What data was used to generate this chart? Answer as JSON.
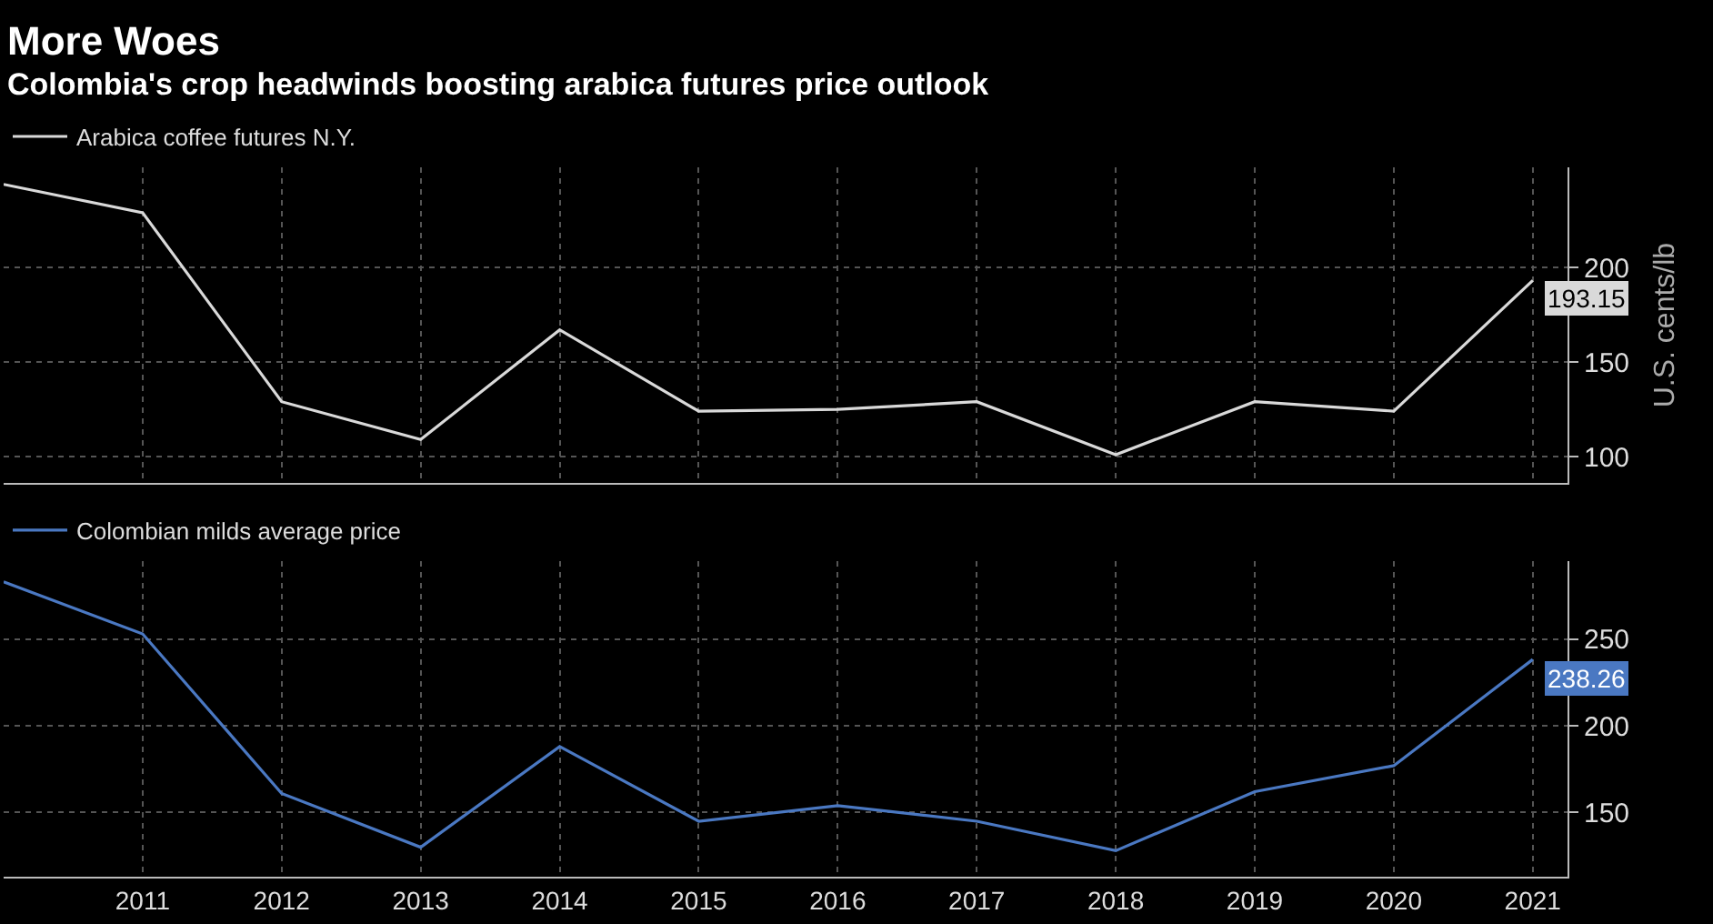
{
  "chart_data": [
    {
      "type": "line",
      "title": "More Woes",
      "subtitle": "Colombia's crop headwinds boosting arabica futures price outlook",
      "ylabel": "U.S. cents/lb",
      "x": [
        2010,
        2011,
        2012,
        2013,
        2014,
        2015,
        2016,
        2017,
        2018,
        2019,
        2020,
        2021
      ],
      "series": [
        {
          "name": "Arabica coffee futures N.Y.",
          "color": "#d9d9d9",
          "values": [
            244,
            229,
            129,
            109,
            167,
            124,
            125,
            129,
            101,
            129,
            124,
            193.15
          ]
        }
      ],
      "annotations": [
        {
          "text": "193.15",
          "x": 2021,
          "y": 193.15
        }
      ],
      "xlim": [
        2010,
        2021.25
      ],
      "xticks": [
        2011,
        2012,
        2013,
        2014,
        2015,
        2016,
        2017,
        2018,
        2019,
        2020,
        2021
      ],
      "ylim": [
        86,
        253
      ],
      "yticks": [
        100,
        150,
        200
      ],
      "grid": true,
      "legend": "top left",
      "tick_labels": "y"
    },
    {
      "type": "line",
      "x": [
        2010,
        2011,
        2012,
        2013,
        2014,
        2015,
        2016,
        2017,
        2018,
        2019,
        2020,
        2021
      ],
      "series": [
        {
          "name": "Colombian milds average price",
          "color": "#4a78c2",
          "values": [
            283,
            253,
            161,
            130,
            188,
            145,
            154,
            145,
            128,
            162,
            177,
            238.26
          ]
        }
      ],
      "annotations": [
        {
          "text": "238.26",
          "x": 2021,
          "y": 238.26
        }
      ],
      "xlim": [
        2010,
        2021.25
      ],
      "xticks": [
        2011,
        2012,
        2013,
        2014,
        2015,
        2016,
        2017,
        2018,
        2019,
        2020,
        2021
      ],
      "ylim": [
        113,
        295
      ],
      "yticks": [
        150,
        200,
        250
      ],
      "grid": true,
      "legend": "top left"
    }
  ]
}
